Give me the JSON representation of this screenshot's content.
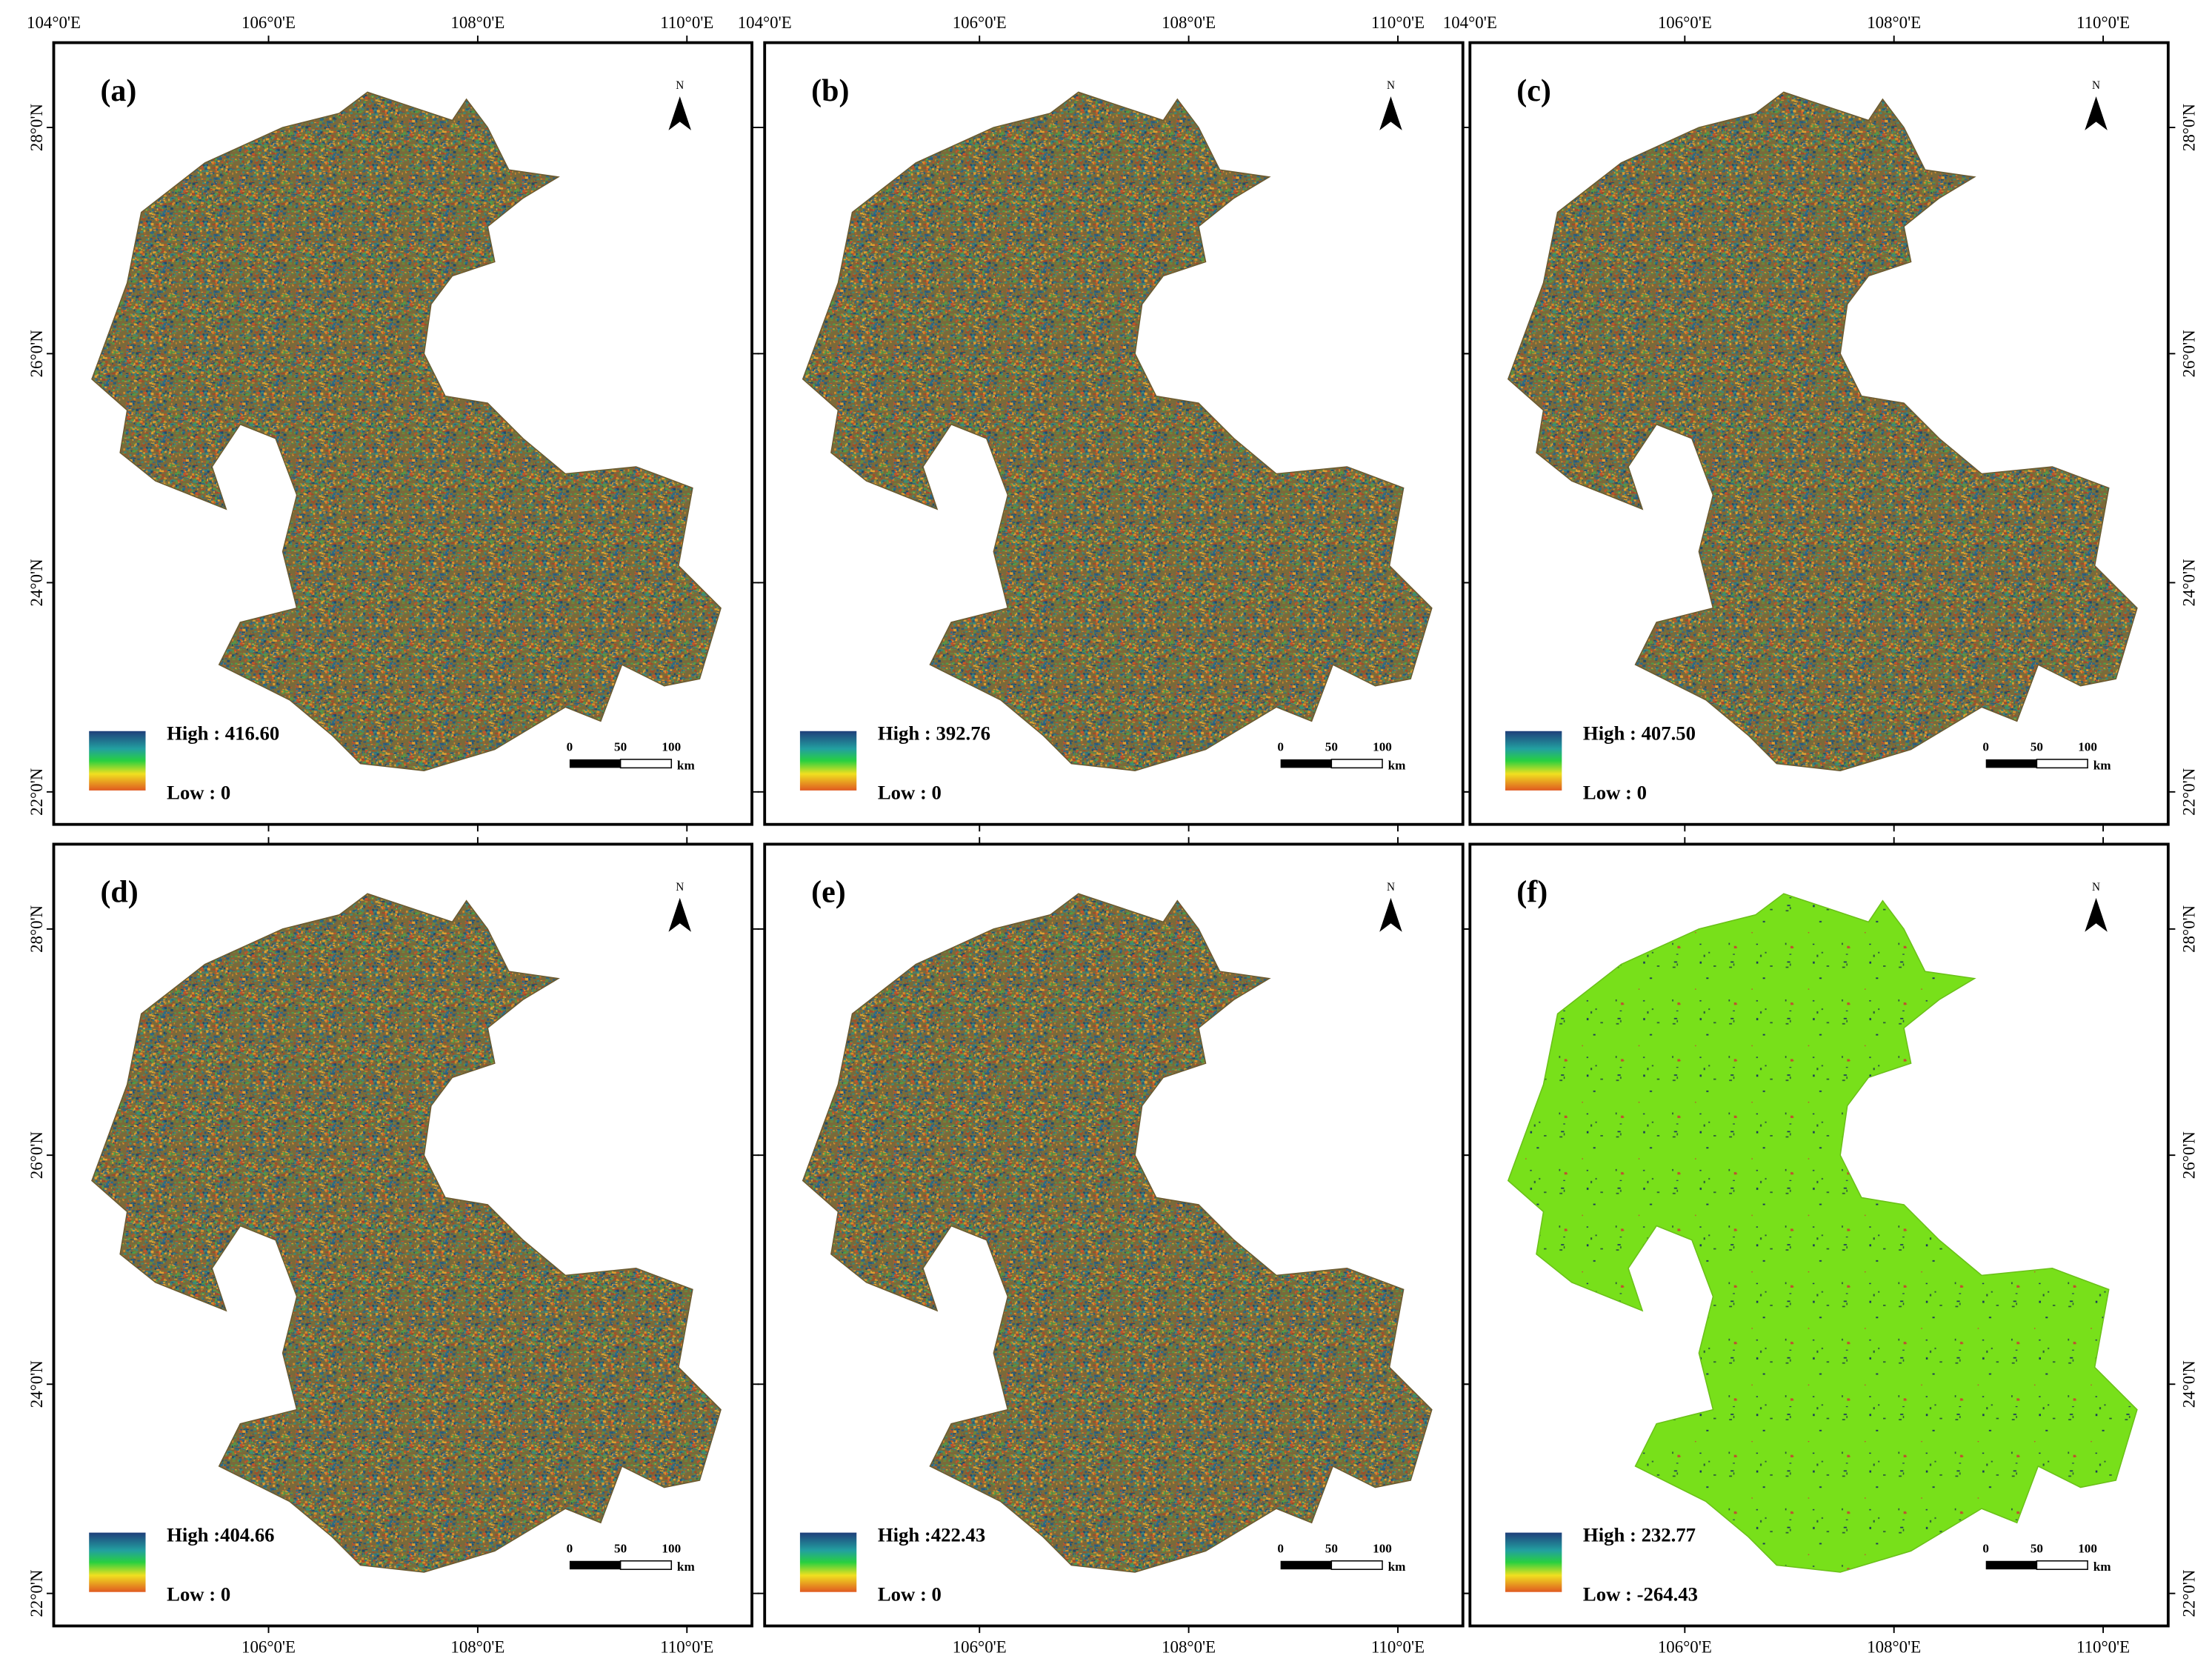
{
  "panels": [
    {
      "label": "(a)",
      "high": "High : 416.60",
      "low": "Low : 0"
    },
    {
      "label": "(b)",
      "high": "High : 392.76",
      "low": "Low : 0"
    },
    {
      "label": "(c)",
      "high": "High : 407.50",
      "low": "Low : 0"
    },
    {
      "label": "(d)",
      "high": "High :404.66",
      "low": "Low : 0"
    },
    {
      "label": "(e)",
      "high": "High :422.43",
      "low": "Low : 0"
    },
    {
      "label": "(f)",
      "high": "High : 232.77",
      "low": "Low : -264.43"
    }
  ],
  "north": "N",
  "scale_bar": {
    "ticks": [
      "0",
      "50",
      "100"
    ],
    "unit": "km"
  },
  "longitudes": [
    "104°0'E",
    "106°0'E",
    "108°0'E",
    "110°0'E"
  ],
  "latitudes": [
    "28°0'N",
    "26°0'N",
    "24°0'N",
    "22°0'N"
  ]
}
